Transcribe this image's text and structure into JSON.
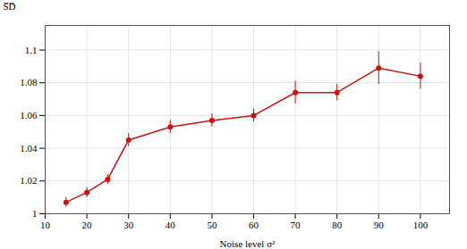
{
  "chart_data": {
    "type": "line",
    "marker": "circle",
    "color": "#cc1111",
    "xlabel": "Noise level σ²",
    "ylabel": "S̅D̅",
    "x": [
      15,
      20,
      25,
      30,
      40,
      50,
      60,
      70,
      80,
      90,
      100
    ],
    "values": [
      1.007,
      1.013,
      1.021,
      1.045,
      1.053,
      1.057,
      1.06,
      1.074,
      1.074,
      1.089,
      1.084
    ],
    "yerr": [
      0.003,
      0.003,
      0.003,
      0.004,
      0.004,
      0.004,
      0.004,
      0.007,
      0.005,
      0.01,
      0.008
    ],
    "xlim": [
      10,
      107
    ],
    "ylim": [
      1.0,
      1.115
    ],
    "xticks": [
      10,
      20,
      30,
      40,
      50,
      60,
      70,
      80,
      90,
      100
    ],
    "yticks": [
      1,
      1.02,
      1.04,
      1.06,
      1.08,
      1.1
    ],
    "grid": true
  }
}
